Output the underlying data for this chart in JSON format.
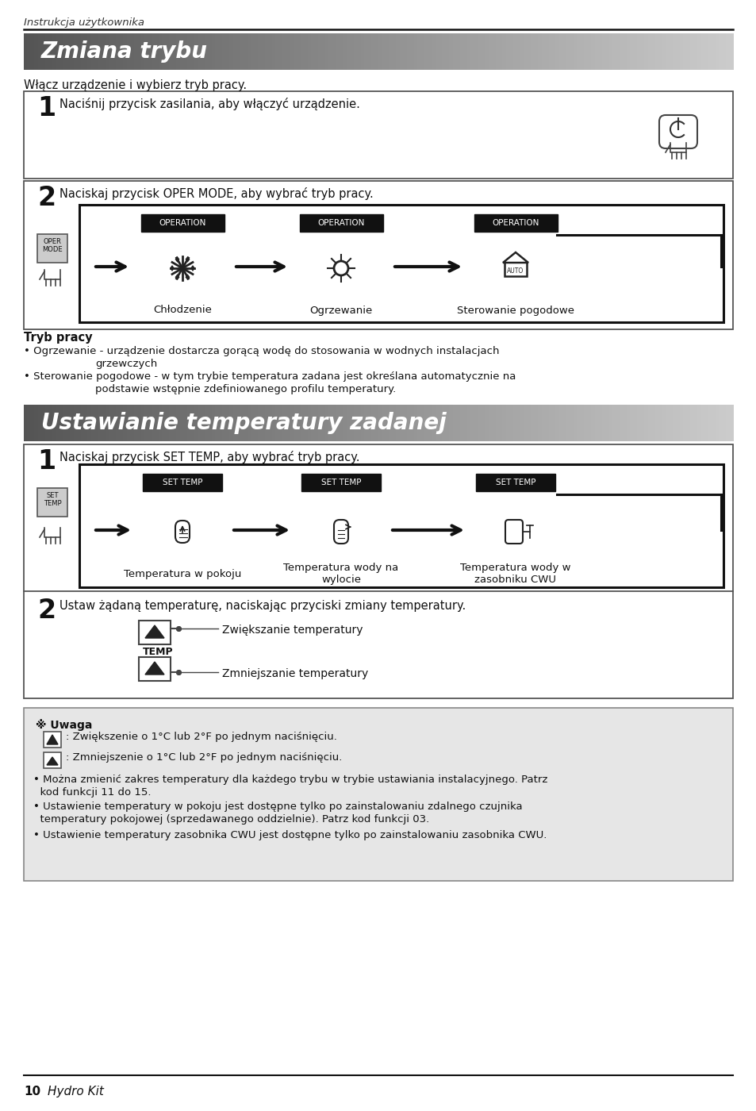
{
  "page_header": "Instrukcja użytkownika",
  "footer_text": "10",
  "footer_italic": "Hydro Kit",
  "section1_title": "Zmiana trybu",
  "section1_intro": "Włącz urządzenie i wybierz tryb pracy.",
  "step1_text": "Naciśnij przycisk zasilania, aby włączyć urządzenie.",
  "step2_text": "Naciskaj przycisk OPER MODE, aby wybrać tryb pracy.",
  "op_labels": [
    "OPERATION",
    "OPERATION",
    "OPERATION"
  ],
  "op_modes": [
    "Chłodzenie",
    "Ogrzewanie",
    "Sterowanie pogodowe"
  ],
  "tryb_title": "Tryb pracy",
  "tryb_bullet1": "• Ogrzewanie - urządzenie dostarcza gorącą wodę do stosowania w wodnych instalacjach",
  "tryb_bullet1b": "grzewczych",
  "tryb_bullet2": "• Sterowanie pogodowe - w tym trybie temperatura zadana jest określana automatycznie na",
  "tryb_bullet2b": "podstawie wstępnie zdefiniowanego profilu temperatury.",
  "section2_title": "Ustawianie temperatury zadanej",
  "s2_step1_text": "Naciskaj przycisk SET TEMP, aby wybrać tryb pracy.",
  "set_temp_labels": [
    "SET TEMP",
    "SET TEMP",
    "SET TEMP"
  ],
  "set_temp_mode1": "Temperatura w pokoju",
  "set_temp_mode2": "Temperatura wody na\nwylocie",
  "set_temp_mode3": "Temperatura wody w\nzasobniku CWU",
  "s2_step2_text": "Ustaw żądaną temperaturę, naciskając przyciski zmiany temperatury.",
  "increase_label": "Zwiększanie temperatury",
  "decrease_label": "Zmniejszanie temperatury",
  "note_title": "※ Uwaga",
  "note_up_text": ": Zwiększenie o 1°C lub 2°F po jednym naciśnięciu.",
  "note_dn_text": ": Zmniejszenie o 1°C lub 2°F po jednym naciśnięciu.",
  "note_b1a": "• Można zmienić zakres temperatury dla każdego trybu w trybie ustawiania instalacyjnego. Patrz",
  "note_b1b": "  kod funkcji 11 do 15.",
  "note_b2a": "• Ustawienie temperatury w pokoju jest dostępne tylko po zainstalowaniu zdalnego czujnika",
  "note_b2b": "  temperatury pokojowej (sprzedawanego oddzielnie). Patrz kod funkcji 03.",
  "note_b3": "• Ustawienie temperatury zasobnika CWU jest dostępne tylko po zainstalowaniu zasobnika CWU.",
  "bg_color": "#ffffff"
}
